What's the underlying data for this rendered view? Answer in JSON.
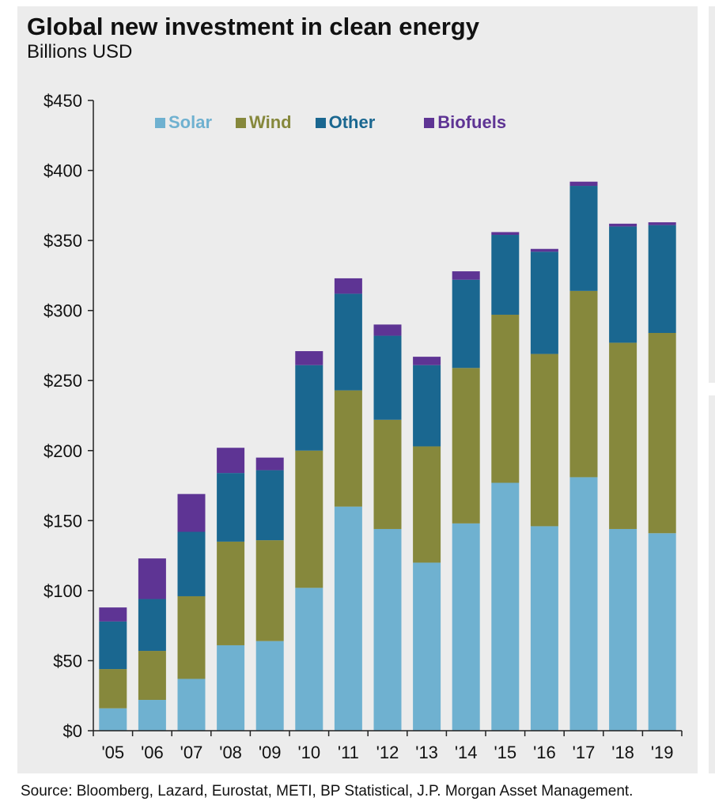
{
  "title": "Global new investment in clean energy",
  "subtitle": "Billions USD",
  "source": "Source: Bloomberg, Lazard, Eurostat, METI, BP Statistical, J.P. Morgan Asset Management.",
  "chart_data": {
    "type": "bar",
    "stacked": true,
    "title": "Global new investment in clean energy",
    "subtitle": "Billions USD",
    "xlabel": "",
    "ylabel": "",
    "ylim": [
      0,
      450
    ],
    "yticks": [
      0,
      50,
      100,
      150,
      200,
      250,
      300,
      350,
      400,
      450
    ],
    "ytick_labels": [
      "$0",
      "$50",
      "$100",
      "$150",
      "$200",
      "$250",
      "$300",
      "$350",
      "$400",
      "$450"
    ],
    "grid": false,
    "legend_position": "top-left",
    "categories": [
      "'05",
      "'06",
      "'07",
      "'08",
      "'09",
      "'10",
      "'11",
      "'12",
      "'13",
      "'14",
      "'15",
      "'16",
      "'17",
      "'18",
      "'19"
    ],
    "series": [
      {
        "name": "Solar",
        "color": "#6fb1d0",
        "values": [
          16,
          22,
          37,
          61,
          64,
          102,
          160,
          144,
          120,
          148,
          177,
          146,
          181,
          144,
          141
        ]
      },
      {
        "name": "Wind",
        "color": "#86883c",
        "values": [
          28,
          35,
          59,
          74,
          72,
          98,
          83,
          78,
          83,
          111,
          120,
          123,
          133,
          133,
          143
        ]
      },
      {
        "name": "Other",
        "color": "#1a6790",
        "values": [
          34,
          37,
          46,
          49,
          50,
          61,
          69,
          60,
          58,
          63,
          57,
          73,
          75,
          83,
          77
        ]
      },
      {
        "name": "Biofuels",
        "color": "#5e3494",
        "values": [
          10,
          29,
          27,
          18,
          9,
          10,
          11,
          8,
          6,
          6,
          2,
          2,
          3,
          2,
          2
        ]
      }
    ]
  }
}
